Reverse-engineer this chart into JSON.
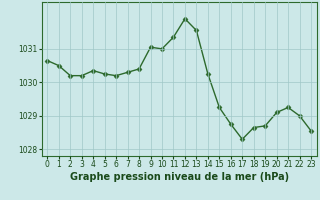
{
  "x": [
    0,
    1,
    2,
    3,
    4,
    5,
    6,
    7,
    8,
    9,
    10,
    11,
    12,
    13,
    14,
    15,
    16,
    17,
    18,
    19,
    20,
    21,
    22,
    23
  ],
  "y": [
    1030.65,
    1030.5,
    1030.2,
    1030.2,
    1030.35,
    1030.25,
    1030.2,
    1030.3,
    1030.4,
    1031.05,
    1031.0,
    1031.35,
    1031.9,
    1031.55,
    1030.25,
    1029.25,
    1028.75,
    1028.3,
    1028.65,
    1028.7,
    1029.1,
    1029.25,
    1029.0,
    1028.55
  ],
  "line_color": "#2d6a2d",
  "marker": "D",
  "marker_size": 2.5,
  "line_width": 1.0,
  "bg_color": "#cce8e8",
  "grid_color": "#a0c8c8",
  "xlabel": "Graphe pression niveau de la mer (hPa)",
  "xlabel_fontsize": 7,
  "xlabel_color": "#1a4a1a",
  "ylim": [
    1027.8,
    1032.4
  ],
  "xlim": [
    -0.5,
    23.5
  ],
  "yticks": [
    1028,
    1029,
    1030,
    1031
  ],
  "xticks": [
    0,
    1,
    2,
    3,
    4,
    5,
    6,
    7,
    8,
    9,
    10,
    11,
    12,
    13,
    14,
    15,
    16,
    17,
    18,
    19,
    20,
    21,
    22,
    23
  ],
  "tick_fontsize": 5.5,
  "tick_color": "#1a4a1a",
  "spine_color": "#2d6a2d"
}
